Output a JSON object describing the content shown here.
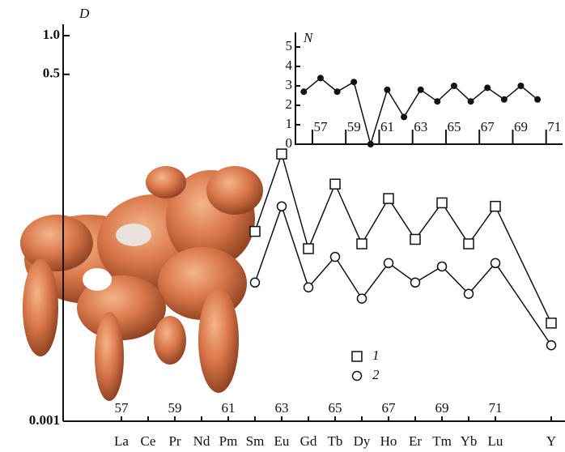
{
  "chart_data": [
    {
      "type": "line",
      "y_label": "D",
      "log_scale": true,
      "categories": [
        "La",
        "Ce",
        "Pr",
        "Nd",
        "Pm",
        "Sm",
        "Eu",
        "Gd",
        "Tb",
        "Dy",
        "Ho",
        "Er",
        "Tm",
        "Yb",
        "Lu",
        "Y"
      ],
      "atomic_numbers": [
        57,
        null,
        59,
        null,
        61,
        null,
        63,
        null,
        65,
        null,
        67,
        null,
        69,
        null,
        71,
        null
      ],
      "ylim": [
        0.001,
        1.0
      ],
      "yticks": [
        {
          "value": 1.0,
          "label": "1.0"
        },
        0.5,
        0.001
      ],
      "series": [
        {
          "name": "1",
          "marker": "square",
          "color": "#111",
          "values": [
            null,
            null,
            null,
            null,
            null,
            0.03,
            0.12,
            0.022,
            0.07,
            0.024,
            0.054,
            0.026,
            0.05,
            0.024,
            0.047,
            0.0058
          ]
        },
        {
          "name": "2",
          "marker": "circle",
          "color": "#111",
          "values": [
            null,
            null,
            null,
            null,
            null,
            0.012,
            0.047,
            0.011,
            0.019,
            0.009,
            0.017,
            0.012,
            0.016,
            0.0098,
            0.017,
            0.0039
          ]
        }
      ]
    },
    {
      "type": "line",
      "y_label": "N",
      "x": [
        56,
        57,
        58,
        59,
        60,
        61,
        62,
        63,
        64,
        65,
        66,
        67,
        68,
        69,
        70
      ],
      "values": [
        2.7,
        3.4,
        2.7,
        3.2,
        0,
        2.8,
        1.4,
        2.8,
        2.2,
        3,
        2.2,
        2.9,
        2.3,
        3,
        2.3
      ],
      "color": "#111",
      "xlim": [
        55.5,
        71.5
      ],
      "xticks": [
        57,
        59,
        61,
        63,
        65,
        67,
        69,
        71
      ],
      "ylim": [
        0,
        5
      ],
      "yticks": [
        0,
        1,
        2,
        3,
        4,
        5
      ]
    }
  ]
}
